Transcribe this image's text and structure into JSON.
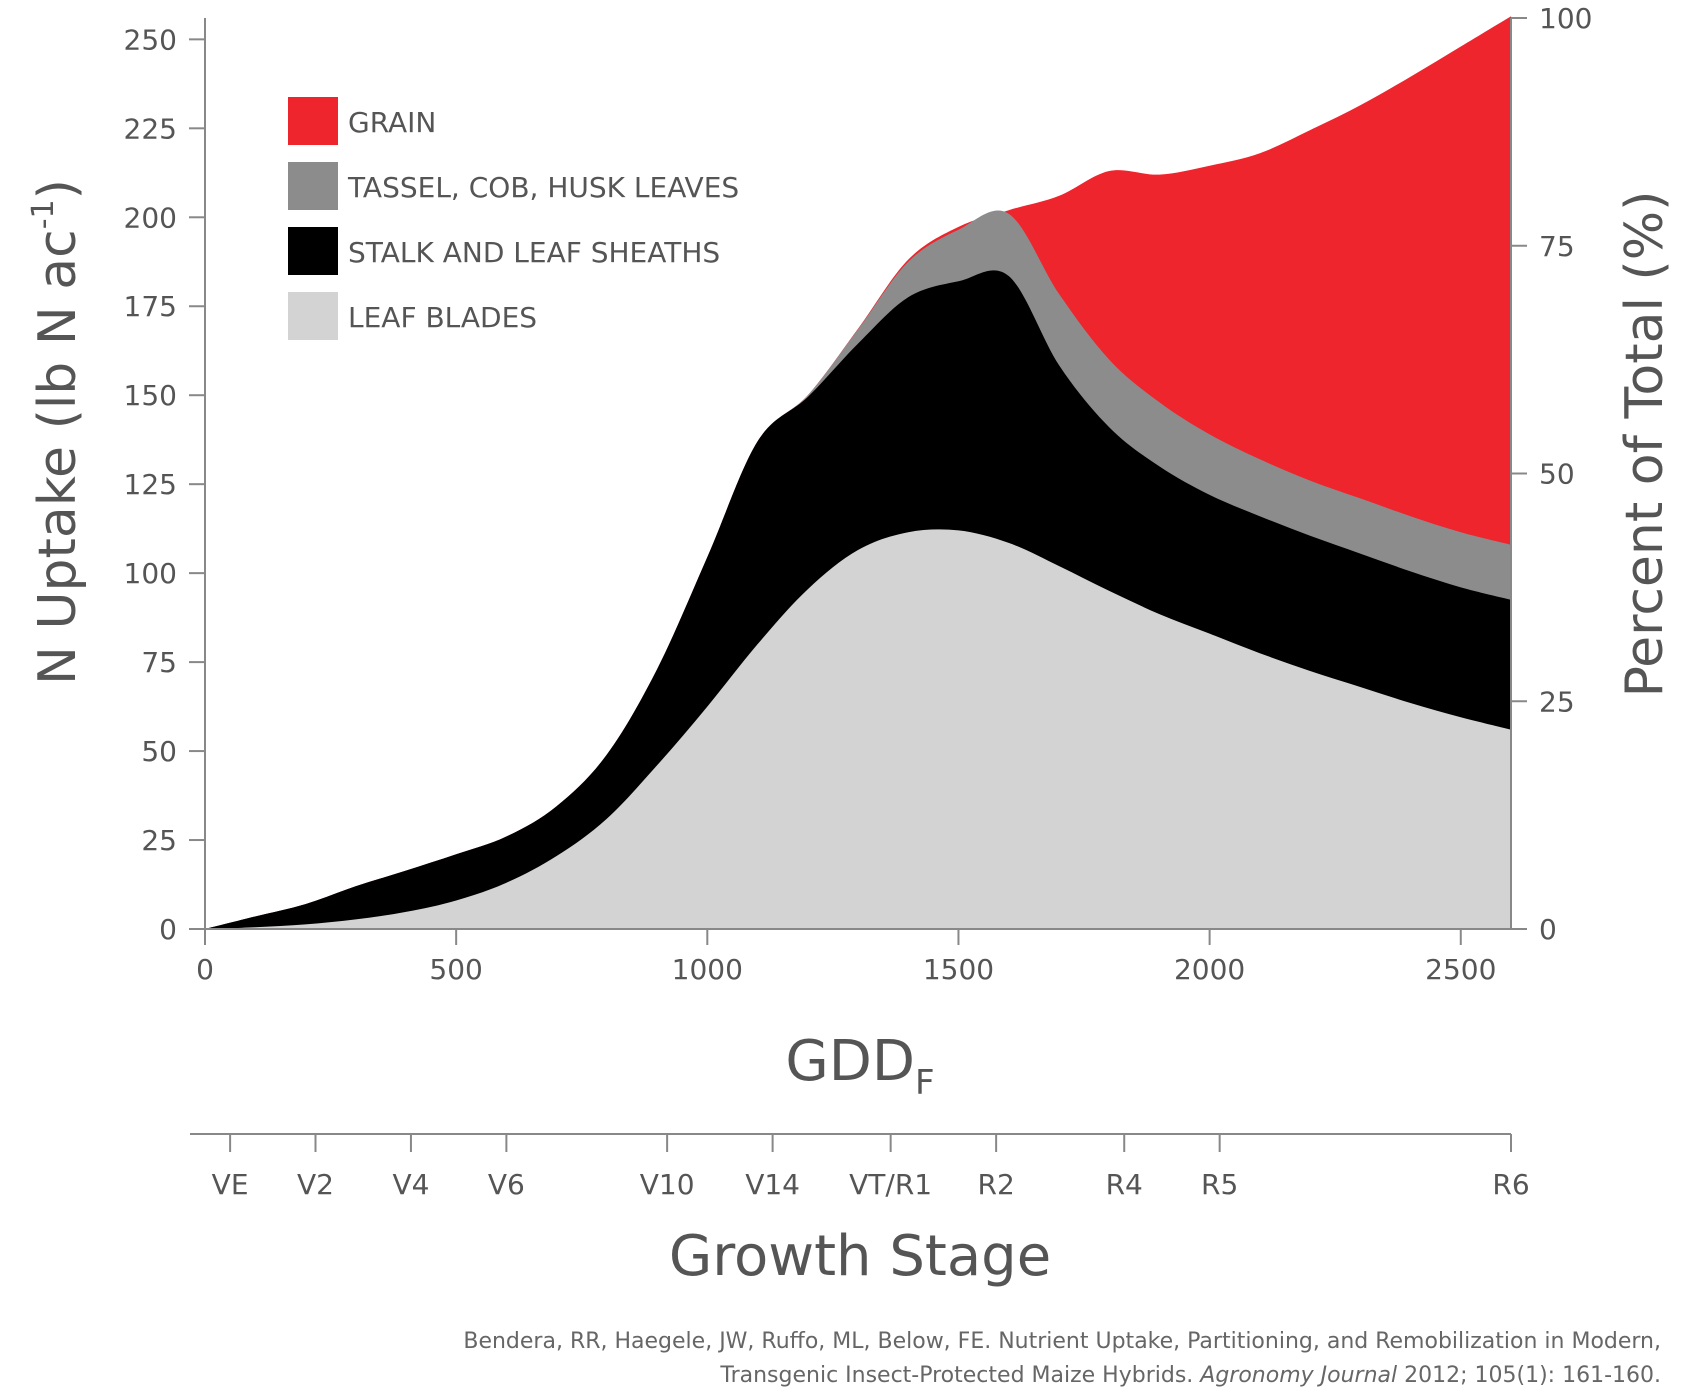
{
  "chart_data": {
    "type": "area",
    "stacked": true,
    "x": [
      0,
      100,
      200,
      300,
      400,
      500,
      600,
      700,
      800,
      900,
      1000,
      1100,
      1200,
      1300,
      1400,
      1500,
      1600,
      1700,
      1800,
      1900,
      2000,
      2100,
      2200,
      2300,
      2400,
      2500,
      2600
    ],
    "series": [
      {
        "name": "LEAF BLADES",
        "color": "#d3d3d3",
        "values": [
          0,
          0.5,
          1.3,
          2.7,
          4.8,
          8.0,
          13.0,
          20.5,
          31.0,
          46.0,
          62.5,
          80.0,
          95.5,
          106.5,
          111.5,
          112.0,
          108.5,
          102.0,
          95.0,
          88.5,
          83.0,
          77.5,
          72.5,
          68.0,
          63.5,
          59.5,
          56.0
        ]
      },
      {
        "name": "STALK AND LEAF SHEATHS",
        "color": "#000000",
        "values": [
          0,
          3.0,
          5.7,
          9.3,
          11.6,
          13.0,
          13.0,
          14.0,
          18.0,
          27.0,
          42.0,
          57.0,
          54.0,
          58.0,
          66.0,
          70.0,
          75.0,
          56.5,
          46.0,
          41.5,
          39.0,
          38.5,
          38.0,
          37.5,
          37.0,
          36.5,
          36.5
        ]
      },
      {
        "name": "TASSEL, COB, HUSK LEAVES",
        "color": "#8c8c8c",
        "values": [
          0,
          0,
          0,
          0,
          0,
          0,
          0,
          0,
          0,
          0,
          0,
          0,
          0.5,
          4.0,
          10.0,
          14.5,
          17.5,
          20.0,
          19.0,
          18.0,
          17.0,
          16.0,
          15.5,
          15.5,
          15.5,
          15.5,
          15.5
        ]
      },
      {
        "name": "GRAIN",
        "color": "#ee252c",
        "values": [
          0,
          0,
          0,
          0,
          0,
          0,
          0,
          0,
          0,
          0,
          0,
          0,
          0,
          0.2,
          0.6,
          0.8,
          1.0,
          27.5,
          53.0,
          64.0,
          75.5,
          86.0,
          98.5,
          110.5,
          123.5,
          136.5,
          148.5
        ]
      }
    ],
    "xlim": [
      0,
      2600
    ],
    "ylim": [
      0,
      256
    ],
    "y2lim": [
      0,
      100
    ],
    "xticks": [
      "0",
      "500",
      "1000",
      "1500",
      "2000",
      "2500"
    ],
    "yticks": [
      "0",
      "25",
      "50",
      "75",
      "100",
      "125",
      "150",
      "175",
      "200",
      "225",
      "250"
    ],
    "y2ticks": [
      "0",
      "25",
      "50",
      "75",
      "100"
    ],
    "ylabel": "N Uptake (lb N ac",
    "ylabel_sup": "-1",
    "ylabel_end": ")",
    "y2label": "Percent of Total (%)",
    "xlabel": "GDD",
    "xlabel_sub": "F",
    "stage_axis": {
      "title": "Growth Stage",
      "stages": [
        {
          "label": "VE",
          "gdd": 50
        },
        {
          "label": "V2",
          "gdd": 220
        },
        {
          "label": "V4",
          "gdd": 410
        },
        {
          "label": "V6",
          "gdd": 600
        },
        {
          "label": "V10",
          "gdd": 920
        },
        {
          "label": "V14",
          "gdd": 1130
        },
        {
          "label": "VT/R1",
          "gdd": 1365
        },
        {
          "label": "R2",
          "gdd": 1575
        },
        {
          "label": "R4",
          "gdd": 1830
        },
        {
          "label": "R5",
          "gdd": 2020
        },
        {
          "label": "R6",
          "gdd": 2600
        }
      ]
    },
    "legend": {
      "position": "top-left",
      "order": [
        "GRAIN",
        "TASSEL, COB, HUSK LEAVES",
        "STALK AND LEAF SHEATHS",
        "LEAF BLADES"
      ]
    },
    "grid": false
  },
  "citation": {
    "line1": "Bendera, RR, Haegele, JW, Ruffo, ML, Below, FE. Nutrient Uptake, Partitioning, and Remobilization in Modern,",
    "line2_pre": "Transgenic Insect-Protected Maize Hybrids. ",
    "journal": "Agronomy Journal",
    "line2_post": " 2012; 105(1): 161-160."
  }
}
